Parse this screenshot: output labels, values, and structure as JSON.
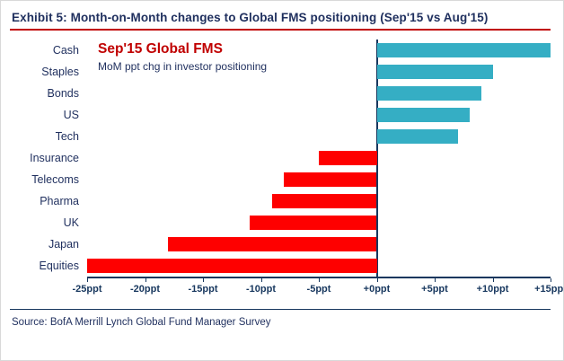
{
  "exhibit_title": "Exhibit 5: Month-on-Month changes to Global FMS positioning (Sep'15 vs Aug'15)",
  "source": "Source: BofA Merrill Lynch Global Fund Manager Survey",
  "colors": {
    "positive_bar": "#35aec4",
    "negative_bar": "#fe0000",
    "title_rule": "#c00000",
    "axis": "#17375e",
    "text_navy": "#1f2f5e"
  },
  "chart_data": {
    "type": "bar",
    "orientation": "horizontal",
    "title": "Sep'15 Global FMS",
    "subtitle": "MoM ppt chg in investor positioning",
    "categories": [
      "Cash",
      "Staples",
      "Bonds",
      "US",
      "Tech",
      "Insurance",
      "Telecoms",
      "Pharma",
      "UK",
      "Japan",
      "Equities"
    ],
    "values": [
      15,
      10,
      9,
      8,
      7,
      -5,
      -8,
      -9,
      -11,
      -18,
      -25
    ],
    "xlabel": "",
    "ylabel": "",
    "xlim": [
      -25,
      15
    ],
    "xticks": [
      -25,
      -20,
      -15,
      -10,
      -5,
      0,
      5,
      10,
      15
    ],
    "xtick_labels": [
      "-25ppt",
      "-20ppt",
      "-15ppt",
      "-10ppt",
      "-5ppt",
      "+0ppt",
      "+5ppt",
      "+10ppt",
      "+15ppt"
    ],
    "grid": false,
    "legend": "none"
  }
}
